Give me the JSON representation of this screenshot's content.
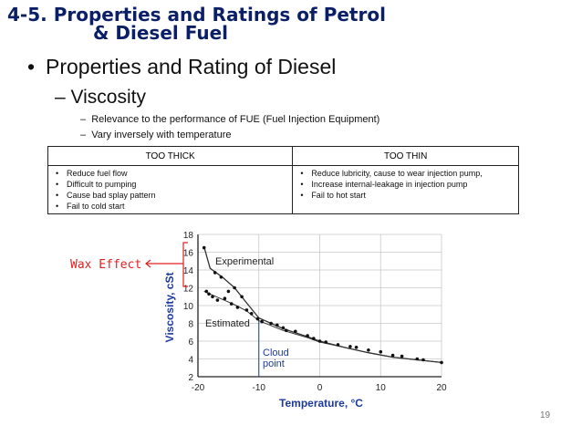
{
  "slide": {
    "title_line1": "4-5. Properties and Ratings of Petrol",
    "title_line2": "& Diesel Fuel",
    "bullet1": "Properties and Rating of Diesel",
    "bullet2": "Viscosity",
    "sub_bullets": [
      "Relevance to the performance of FUE (Fuel Injection Equipment)",
      "Vary inversely with temperature"
    ],
    "page_number": "19",
    "title_color": "#0b1f66"
  },
  "table": {
    "headers": [
      "TOO THICK",
      "TOO THIN"
    ],
    "too_thick": [
      "Reduce fuel flow",
      "Difficult to pumping",
      "Cause bad splay pattern",
      "Fail to cold start"
    ],
    "too_thin": [
      "Reduce lubricity, cause to wear injection pump,",
      "Increase internal-leakage in injection pump",
      "Fail to hot start"
    ]
  },
  "annotation": {
    "wax_effect": "Wax Effect",
    "color": "#e02020"
  },
  "chart_data": {
    "type": "line",
    "xlabel": "Temperature, °C",
    "ylabel": "Viscosity, cSt",
    "xlim": [
      -20,
      20
    ],
    "ylim": [
      2,
      18
    ],
    "x_ticks": [
      -20,
      -10,
      0,
      10,
      20
    ],
    "y_ticks": [
      2,
      4,
      6,
      8,
      10,
      12,
      14,
      16,
      18
    ],
    "cloud_point_x": -10,
    "annotations": [
      "Experimental",
      "Estimated",
      "Cloud",
      "point"
    ],
    "series": [
      {
        "name": "Experimental",
        "x": [
          -19,
          -18,
          -16,
          -14,
          -12,
          -10,
          -6,
          -2,
          0,
          4,
          8,
          12,
          16,
          20
        ],
        "y": [
          16.6,
          14.2,
          13.2,
          12.0,
          10.3,
          8.6,
          7.4,
          6.5,
          6.0,
          5.3,
          4.7,
          4.2,
          3.9,
          3.6
        ]
      },
      {
        "name": "Estimated",
        "x": [
          -19,
          -16,
          -14,
          -12,
          -10,
          -6,
          -2,
          0,
          4,
          8,
          12,
          16,
          20
        ],
        "y": [
          11.6,
          10.7,
          10.1,
          9.4,
          8.3,
          7.2,
          6.4,
          5.9,
          5.3,
          4.7,
          4.2,
          3.9,
          3.6
        ]
      }
    ],
    "points": {
      "x": [
        -19,
        -18.6,
        -18.2,
        -17.6,
        -17.2,
        -16.8,
        -16.2,
        -15.6,
        -15,
        -14.5,
        -14,
        -13.5,
        -12.8,
        -12,
        -11.2,
        -10.2,
        -9.5,
        -8,
        -7,
        -6,
        -5.5,
        -4,
        -2,
        -1,
        0,
        1,
        3,
        5,
        6,
        8,
        10,
        12,
        13.5,
        16,
        17,
        20
      ],
      "y": [
        16.5,
        11.6,
        11.3,
        11.0,
        13.7,
        10.6,
        13.2,
        10.8,
        11.6,
        10.2,
        12.0,
        9.8,
        11.0,
        9.5,
        9.1,
        8.5,
        8.2,
        8.0,
        7.8,
        7.5,
        7.2,
        7.1,
        6.6,
        6.3,
        6.0,
        5.9,
        5.6,
        5.4,
        5.3,
        5.0,
        4.8,
        4.4,
        4.3,
        4.0,
        3.9,
        3.6
      ]
    }
  }
}
